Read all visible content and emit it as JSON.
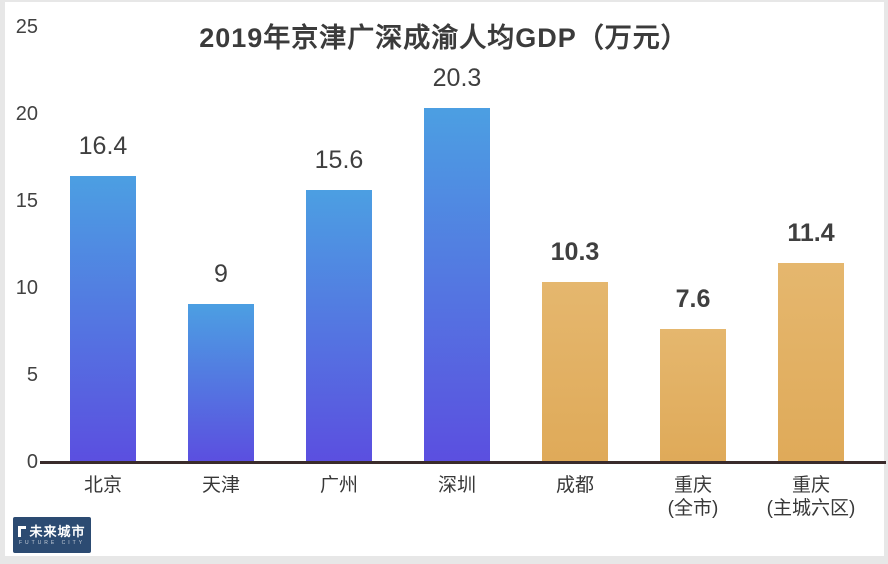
{
  "chart_data": {
    "type": "bar",
    "title": "2019年京津广深成渝人均GDP（万元）",
    "categories": [
      "北京",
      "天津",
      "广州",
      "深圳",
      "成都",
      "重庆(全市)",
      "重庆(主城六区)"
    ],
    "values": [
      16.4,
      9,
      15.6,
      20.3,
      10.3,
      7.6,
      11.4
    ],
    "bars": [
      {
        "slug": "beijing",
        "city_lines": [
          "北京"
        ],
        "value": 16.4,
        "label": "16.4",
        "group": "blue"
      },
      {
        "slug": "tianjin",
        "city_lines": [
          "天津"
        ],
        "value": 9,
        "label": "9",
        "group": "blue"
      },
      {
        "slug": "guangzhou",
        "city_lines": [
          "广州"
        ],
        "value": 15.6,
        "label": "15.6",
        "group": "blue"
      },
      {
        "slug": "shenzhen",
        "city_lines": [
          "深圳"
        ],
        "value": 20.3,
        "label": "20.3",
        "group": "blue"
      },
      {
        "slug": "chengdu",
        "city_lines": [
          "成都"
        ],
        "value": 10.3,
        "label": "10.3",
        "group": "gold"
      },
      {
        "slug": "chongqing-city",
        "city_lines": [
          "重庆",
          "(全市)"
        ],
        "value": 7.6,
        "label": "7.6",
        "group": "gold"
      },
      {
        "slug": "chongqing-six-districts",
        "city_lines": [
          "重庆",
          "(主城六区)"
        ],
        "value": 11.4,
        "label": "11.4",
        "group": "gold"
      }
    ],
    "ylim": [
      0,
      25
    ],
    "yticks": [
      25,
      20,
      15,
      10,
      5,
      0
    ],
    "xlabel": "",
    "ylabel": "",
    "grid": false,
    "legend": false,
    "colors": {
      "blue_top": "#4c9fe2",
      "blue_bottom": "#5b4fe0",
      "gold_top": "#e5b76e",
      "gold_bottom": "#dfaa59",
      "axis_line": "#3a2b2b",
      "title_text": "#3b3b3b",
      "value_text": "#3f3f3f"
    }
  },
  "watermark": {
    "name": "未来城市",
    "subtext": "FUTURE CITY"
  }
}
